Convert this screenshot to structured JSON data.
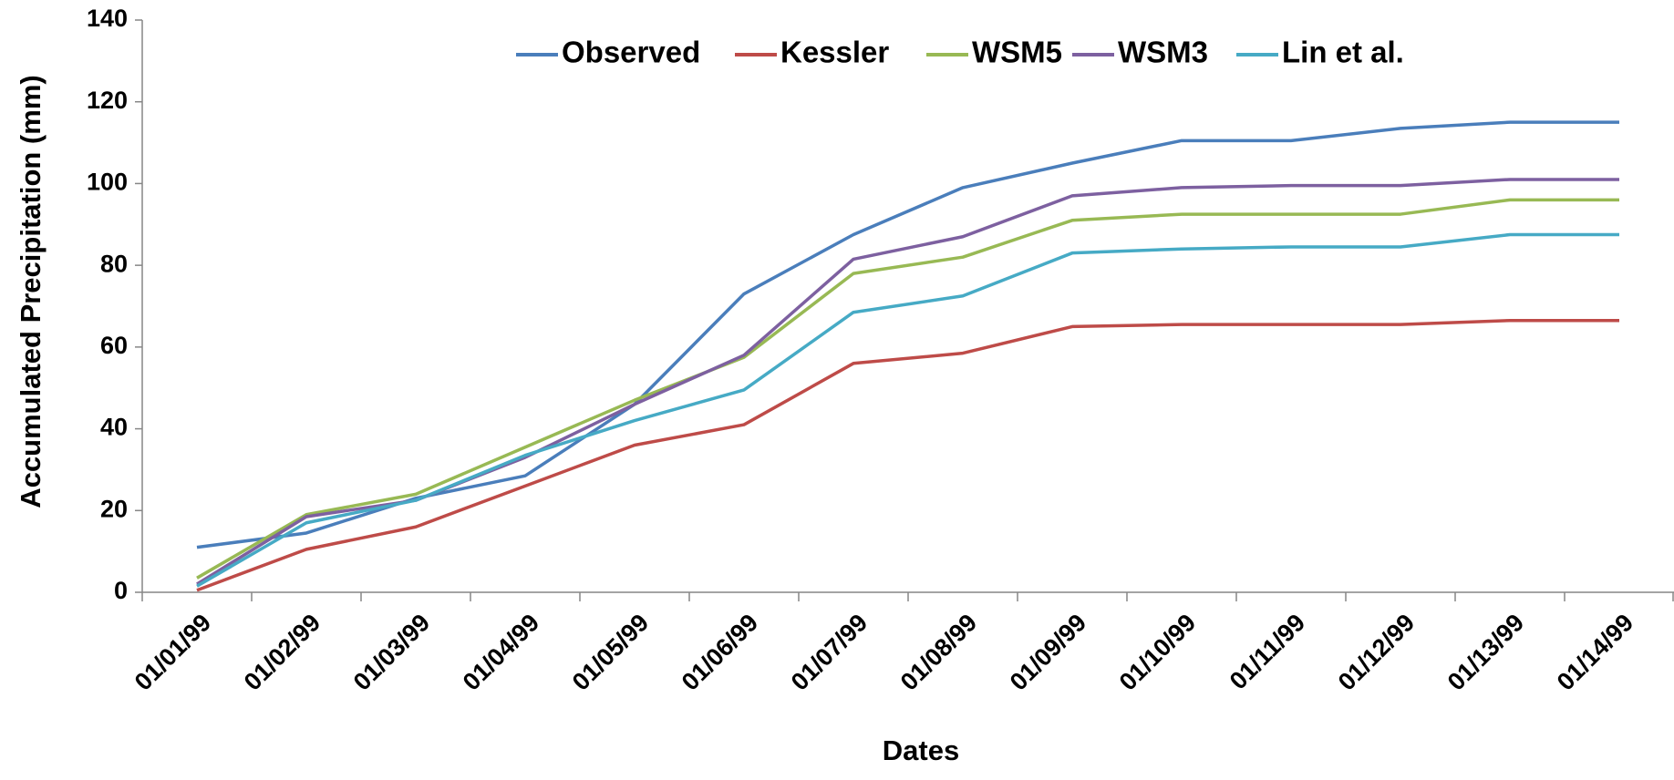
{
  "chart_data": {
    "type": "line",
    "x_label": "Dates",
    "y_label": "Accumulated Precipitation (mm)",
    "categories": [
      "01/01/99",
      "01/02/99",
      "01/03/99",
      "01/04/99",
      "01/05/99",
      "01/06/99",
      "01/07/99",
      "01/08/99",
      "01/09/99",
      "01/10/99",
      "01/11/99",
      "01/12/99",
      "01/13/99",
      "01/14/99"
    ],
    "series": [
      {
        "name": "Observed",
        "color": "#4a7ebb",
        "values": [
          11,
          14.5,
          23,
          28.5,
          46,
          73,
          87.5,
          99,
          105,
          110.5,
          110.5,
          113.5,
          115,
          115
        ]
      },
      {
        "name": "Kessler",
        "color": "#be4b48",
        "values": [
          0.5,
          10.5,
          16,
          26,
          36,
          41,
          56,
          58.5,
          65,
          65.5,
          65.5,
          65.5,
          66.5,
          66.5
        ]
      },
      {
        "name": "WSM5",
        "color": "#98b954",
        "values": [
          3.5,
          19,
          24,
          35.5,
          47,
          57.5,
          78,
          82,
          91,
          92.5,
          92.5,
          92.5,
          96,
          96
        ]
      },
      {
        "name": "WSM3",
        "color": "#7d60a0",
        "values": [
          2,
          18.5,
          22.5,
          33,
          46,
          58,
          81.5,
          87,
          97,
          99,
          99.5,
          99.5,
          101,
          101
        ]
      },
      {
        "name": "Lin et al.",
        "color": "#46aac5",
        "values": [
          1.5,
          17,
          22.5,
          33.5,
          42,
          49.5,
          68.5,
          72.5,
          83,
          84,
          84.5,
          84.5,
          87.5,
          87.5
        ]
      }
    ],
    "ylim": [
      0,
      140
    ],
    "yticks": [
      0,
      20,
      40,
      60,
      80,
      100,
      120,
      140
    ],
    "legend": "top"
  }
}
